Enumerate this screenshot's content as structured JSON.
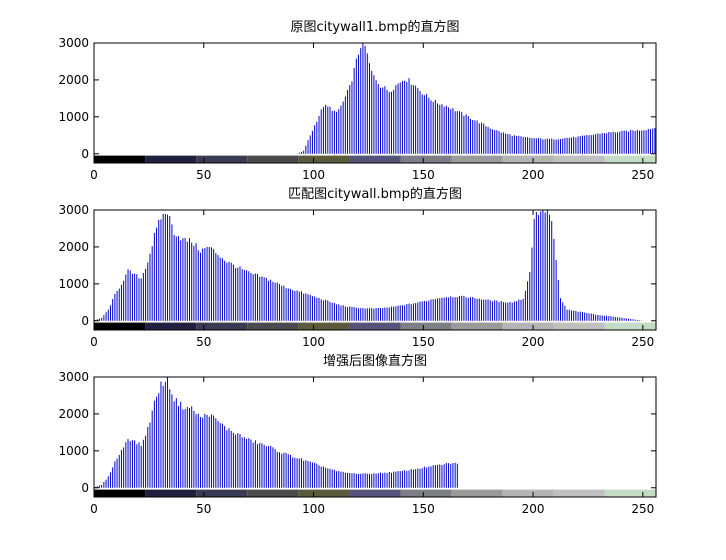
{
  "chart_data": [
    {
      "type": "bar",
      "title": "原图citywall1.bmp的直方图",
      "xlim": [
        0,
        256
      ],
      "ylim": [
        -250,
        3000
      ],
      "xticks": [
        0,
        50,
        100,
        150,
        200,
        250
      ],
      "yticks": [
        0,
        1000,
        2000,
        3000
      ],
      "bar_color": "#0000cc",
      "colorbar_colors": [
        "#000000",
        "#20203f",
        "#3a3a52",
        "#4a4a4a",
        "#5c5a3c",
        "#54547a",
        "#7e7e86",
        "#9a9a9a",
        "#b4b4b4",
        "#c0c0c0",
        "#c4dcc4",
        "#fcfcf0"
      ],
      "profile": [
        [
          0,
          0
        ],
        [
          92,
          0
        ],
        [
          95,
          80
        ],
        [
          98,
          500
        ],
        [
          101,
          900
        ],
        [
          104,
          1300
        ],
        [
          107,
          1250
        ],
        [
          110,
          1100
        ],
        [
          113,
          1400
        ],
        [
          116,
          1800
        ],
        [
          119,
          2500
        ],
        [
          121,
          2950
        ],
        [
          123,
          2900
        ],
        [
          126,
          2200
        ],
        [
          130,
          1850
        ],
        [
          134,
          1700
        ],
        [
          138,
          1900
        ],
        [
          141,
          2050
        ],
        [
          145,
          1900
        ],
        [
          150,
          1600
        ],
        [
          155,
          1400
        ],
        [
          160,
          1300
        ],
        [
          165,
          1150
        ],
        [
          170,
          1000
        ],
        [
          175,
          850
        ],
        [
          180,
          700
        ],
        [
          185,
          580
        ],
        [
          190,
          500
        ],
        [
          195,
          450
        ],
        [
          200,
          420
        ],
        [
          205,
          400
        ],
        [
          210,
          400
        ],
        [
          215,
          430
        ],
        [
          220,
          460
        ],
        [
          225,
          500
        ],
        [
          230,
          550
        ],
        [
          235,
          580
        ],
        [
          240,
          600
        ],
        [
          245,
          630
        ],
        [
          250,
          650
        ],
        [
          255,
          700
        ]
      ]
    },
    {
      "type": "bar",
      "title": "匹配图citywall.bmp的直方图",
      "xlim": [
        0,
        256
      ],
      "ylim": [
        -250,
        3000
      ],
      "xticks": [
        0,
        50,
        100,
        150,
        200,
        250
      ],
      "yticks": [
        0,
        1000,
        2000,
        3000
      ],
      "bar_color": "#0000cc",
      "colorbar_colors": [
        "#000000",
        "#20203f",
        "#3a3a52",
        "#4a4a4a",
        "#5c5a3c",
        "#54547a",
        "#7e7e86",
        "#9a9a9a",
        "#b4b4b4",
        "#c0c0c0",
        "#c4dcc4",
        "#fcfcf0"
      ],
      "profile": [
        [
          0,
          20
        ],
        [
          3,
          80
        ],
        [
          6,
          300
        ],
        [
          9,
          700
        ],
        [
          12,
          1000
        ],
        [
          15,
          1350
        ],
        [
          18,
          1250
        ],
        [
          21,
          1150
        ],
        [
          24,
          1600
        ],
        [
          27,
          2300
        ],
        [
          30,
          2800
        ],
        [
          33,
          2950
        ],
        [
          36,
          2400
        ],
        [
          40,
          2200
        ],
        [
          44,
          2150
        ],
        [
          48,
          1900
        ],
        [
          52,
          2000
        ],
        [
          56,
          1800
        ],
        [
          60,
          1600
        ],
        [
          65,
          1450
        ],
        [
          70,
          1300
        ],
        [
          75,
          1200
        ],
        [
          80,
          1100
        ],
        [
          85,
          950
        ],
        [
          90,
          850
        ],
        [
          95,
          750
        ],
        [
          100,
          650
        ],
        [
          105,
          550
        ],
        [
          110,
          450
        ],
        [
          115,
          380
        ],
        [
          120,
          350
        ],
        [
          125,
          330
        ],
        [
          130,
          340
        ],
        [
          135,
          370
        ],
        [
          140,
          420
        ],
        [
          145,
          470
        ],
        [
          150,
          530
        ],
        [
          155,
          600
        ],
        [
          160,
          650
        ],
        [
          165,
          660
        ],
        [
          170,
          640
        ],
        [
          175,
          600
        ],
        [
          180,
          550
        ],
        [
          185,
          520
        ],
        [
          190,
          500
        ],
        [
          195,
          600
        ],
        [
          198,
          1300
        ],
        [
          200,
          2800
        ],
        [
          203,
          3000
        ],
        [
          206,
          3000
        ],
        [
          208,
          2700
        ],
        [
          210,
          1600
        ],
        [
          212,
          600
        ],
        [
          215,
          300
        ],
        [
          220,
          250
        ],
        [
          225,
          200
        ],
        [
          230,
          150
        ],
        [
          235,
          120
        ],
        [
          240,
          80
        ],
        [
          245,
          40
        ],
        [
          250,
          0
        ]
      ]
    },
    {
      "type": "bar",
      "title": "增强后图像直方图",
      "xlim": [
        0,
        256
      ],
      "ylim": [
        -250,
        3000
      ],
      "xticks": [
        0,
        50,
        100,
        150,
        200,
        250
      ],
      "yticks": [
        0,
        1000,
        2000,
        3000
      ],
      "bar_color": "#0000cc",
      "colorbar_colors": [
        "#000000",
        "#20203f",
        "#3a3a52",
        "#4a4a4a",
        "#5c5a3c",
        "#54547a",
        "#7e7e86",
        "#9a9a9a",
        "#b4b4b4",
        "#c0c0c0",
        "#c4dcc4",
        "#fcfcf0"
      ],
      "profile": [
        [
          0,
          20
        ],
        [
          3,
          80
        ],
        [
          6,
          300
        ],
        [
          9,
          700
        ],
        [
          12,
          1000
        ],
        [
          15,
          1350
        ],
        [
          18,
          1250
        ],
        [
          21,
          1150
        ],
        [
          24,
          1600
        ],
        [
          27,
          2300
        ],
        [
          30,
          2800
        ],
        [
          33,
          2950
        ],
        [
          36,
          2400
        ],
        [
          40,
          2200
        ],
        [
          44,
          2150
        ],
        [
          48,
          1900
        ],
        [
          52,
          2000
        ],
        [
          56,
          1800
        ],
        [
          60,
          1600
        ],
        [
          65,
          1450
        ],
        [
          70,
          1300
        ],
        [
          75,
          1200
        ],
        [
          80,
          1100
        ],
        [
          85,
          950
        ],
        [
          90,
          850
        ],
        [
          95,
          750
        ],
        [
          100,
          650
        ],
        [
          105,
          550
        ],
        [
          110,
          450
        ],
        [
          115,
          400
        ],
        [
          120,
          380
        ],
        [
          125,
          380
        ],
        [
          130,
          400
        ],
        [
          135,
          420
        ],
        [
          140,
          450
        ],
        [
          145,
          500
        ],
        [
          150,
          550
        ],
        [
          155,
          600
        ],
        [
          160,
          650
        ],
        [
          165,
          670
        ],
        [
          166,
          0
        ]
      ]
    }
  ]
}
